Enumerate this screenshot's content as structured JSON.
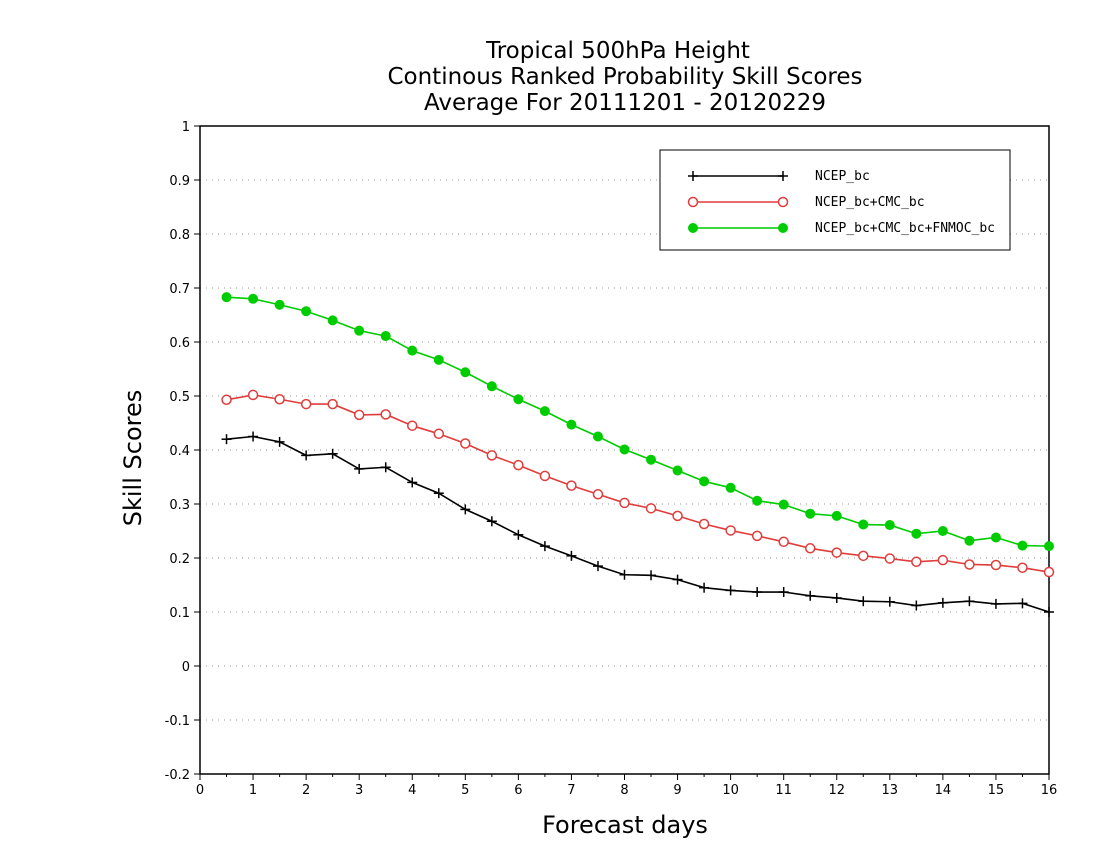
{
  "chart_data": {
    "type": "line",
    "title_lines": [
      "Tropical 500hPa Height",
      "Continous Ranked Probability Skill Scores",
      "Average For 20111201 - 20120229"
    ],
    "xlabel": "Forecast days",
    "ylabel": "Skill Scores",
    "xlim": [
      0,
      16
    ],
    "ylim": [
      -0.2,
      1
    ],
    "xticks": [
      "0",
      "1",
      "2",
      "3",
      "4",
      "5",
      "6",
      "7",
      "8",
      "9",
      "10",
      "11",
      "12",
      "13",
      "14",
      "15",
      "16"
    ],
    "yticks": [
      "-0.2",
      "-0.1",
      "0",
      "0.1",
      "0.2",
      "0.3",
      "0.4",
      "0.5",
      "0.6",
      "0.7",
      "0.8",
      "0.9",
      "1"
    ],
    "grid": "horizontal-dotted",
    "legend_position": "top-right",
    "x": [
      0.5,
      1,
      1.5,
      2,
      2.5,
      3,
      3.5,
      4,
      4.5,
      5,
      5.5,
      6,
      6.5,
      7,
      7.5,
      8,
      8.5,
      9,
      9.5,
      10,
      10.5,
      11,
      11.5,
      12,
      12.5,
      13,
      13.5,
      14,
      14.5,
      15,
      15.5,
      16
    ],
    "series": [
      {
        "name": "NCEP_bc",
        "color": "#000000",
        "marker": "plus",
        "values": [
          0.42,
          0.425,
          0.415,
          0.39,
          0.393,
          0.365,
          0.368,
          0.34,
          0.32,
          0.29,
          0.268,
          0.243,
          0.222,
          0.204,
          0.185,
          0.169,
          0.168,
          0.16,
          0.145,
          0.14,
          0.137,
          0.137,
          0.13,
          0.126,
          0.12,
          0.119,
          0.112,
          0.117,
          0.12,
          0.115,
          0.116,
          0.1
        ]
      },
      {
        "name": "NCEP_bc+CMC_bc",
        "color": "#e03c3c",
        "marker": "open-circle",
        "values": [
          0.493,
          0.502,
          0.494,
          0.485,
          0.485,
          0.465,
          0.466,
          0.445,
          0.43,
          0.412,
          0.39,
          0.372,
          0.352,
          0.334,
          0.318,
          0.302,
          0.292,
          0.278,
          0.263,
          0.251,
          0.241,
          0.23,
          0.218,
          0.21,
          0.204,
          0.199,
          0.193,
          0.196,
          0.188,
          0.187,
          0.182,
          0.174
        ]
      },
      {
        "name": "NCEP_bc+CMC_bc+FNMOC_bc",
        "color": "#00cc00",
        "marker": "filled-circle",
        "values": [
          0.683,
          0.68,
          0.669,
          0.657,
          0.64,
          0.621,
          0.611,
          0.584,
          0.567,
          0.544,
          0.518,
          0.494,
          0.472,
          0.447,
          0.425,
          0.401,
          0.382,
          0.362,
          0.342,
          0.33,
          0.306,
          0.299,
          0.282,
          0.278,
          0.262,
          0.261,
          0.245,
          0.25,
          0.232,
          0.238,
          0.223,
          0.222
        ]
      }
    ]
  }
}
